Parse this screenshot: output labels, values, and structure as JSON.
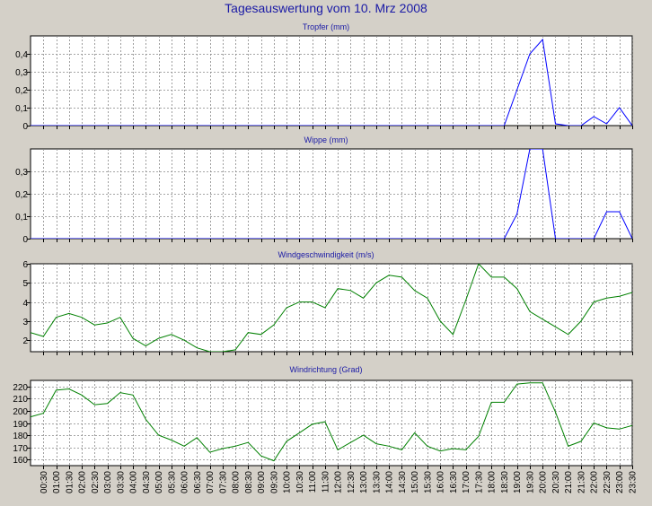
{
  "page_title": "Tagesauswertung vom 10. Mrz 2008",
  "colors": {
    "background": "#d4d0c8",
    "plot_area": "#ffffff",
    "title": "#1a1aa6",
    "grid": "#888888"
  },
  "x_ticks": [
    "00:30",
    "01:00",
    "01:30",
    "02:00",
    "02:30",
    "03:00",
    "03:30",
    "04:00",
    "04:30",
    "05:00",
    "05:30",
    "06:00",
    "06:30",
    "07:00",
    "07:30",
    "08:00",
    "08:30",
    "09:00",
    "09:30",
    "10:00",
    "10:30",
    "11:00",
    "11:30",
    "12:00",
    "12:30",
    "13:00",
    "13:30",
    "14:00",
    "14:30",
    "15:00",
    "15:30",
    "16:00",
    "16:30",
    "17:00",
    "17:30",
    "18:00",
    "18:30",
    "19:00",
    "19:30",
    "20:00",
    "20:30",
    "21:00",
    "21:30",
    "22:00",
    "22:30",
    "23:00",
    "23:30"
  ],
  "chart_data": [
    {
      "type": "line",
      "title": "Tropfer (mm)",
      "ylim": [
        0,
        0.5
      ],
      "yticks": [
        0,
        0.1,
        0.2,
        0.3,
        0.4
      ],
      "ytick_labels": [
        "0",
        "0,1",
        "0,2",
        "0,3",
        "0,4"
      ],
      "grid": true,
      "color": "#0000ff",
      "x_points": [
        0,
        18.5,
        19.0,
        19.5,
        20.0,
        20.5,
        21.0,
        21.5,
        22.0,
        22.5,
        23.0,
        23.5
      ],
      "values": [
        0,
        0,
        0.2,
        0.4,
        0.48,
        0.01,
        0,
        0,
        0.05,
        0.01,
        0.1,
        0
      ]
    },
    {
      "type": "line",
      "title": "Wippe (mm)",
      "ylim": [
        0,
        0.4
      ],
      "yticks": [
        0,
        0.1,
        0.2,
        0.3
      ],
      "ytick_labels": [
        "0",
        "0,1",
        "0,2",
        "0,3"
      ],
      "grid": true,
      "color": "#0000ff",
      "x_points": [
        0,
        18.5,
        19.0,
        19.5,
        20.0,
        20.5,
        21.0,
        21.5,
        22.0,
        22.5,
        23.0,
        23.5
      ],
      "values": [
        0,
        0,
        0.11,
        0.4,
        0.4,
        0,
        0,
        0,
        0,
        0.12,
        0.12,
        0
      ]
    },
    {
      "type": "line",
      "title": "Windgeschwindigkeit (m/s)",
      "ylim": [
        1.4,
        6
      ],
      "yticks": [
        2,
        3,
        4,
        5,
        6
      ],
      "ytick_labels": [
        "2",
        "3",
        "4",
        "5",
        "6"
      ],
      "grid": true,
      "color": "#008000",
      "x_points": [
        0,
        0.5,
        1.0,
        1.5,
        2.0,
        2.5,
        3.0,
        3.5,
        4.0,
        4.5,
        5.0,
        5.5,
        6.0,
        6.5,
        7.0,
        7.5,
        8.0,
        8.5,
        9.0,
        9.5,
        10.0,
        10.5,
        11.0,
        11.5,
        12.0,
        12.5,
        13.0,
        13.5,
        14.0,
        14.5,
        15.0,
        15.5,
        16.0,
        16.5,
        17.0,
        17.5,
        18.0,
        18.5,
        19.0,
        19.5,
        20.0,
        20.5,
        21.0,
        21.5,
        22.0,
        22.5,
        23.0,
        23.5
      ],
      "values": [
        2.4,
        2.2,
        3.2,
        3.4,
        3.2,
        2.8,
        2.9,
        3.2,
        2.1,
        1.7,
        2.1,
        2.3,
        2.0,
        1.6,
        1.4,
        1.4,
        1.5,
        2.4,
        2.3,
        2.8,
        3.7,
        4.0,
        4.0,
        3.7,
        4.7,
        4.6,
        4.2,
        5.0,
        5.4,
        5.3,
        4.6,
        4.2,
        3.0,
        2.3,
        4.1,
        6.0,
        5.3,
        5.3,
        4.7,
        3.5,
        3.1,
        2.7,
        2.3,
        3.0,
        4.0,
        4.2,
        4.3,
        4.5
      ]
    },
    {
      "type": "line",
      "title": "Windrichtung (Grad)",
      "ylim": [
        155,
        225
      ],
      "yticks": [
        160,
        170,
        180,
        190,
        200,
        210,
        220
      ],
      "ytick_labels": [
        "160",
        "170",
        "180",
        "190",
        "200",
        "210",
        "220"
      ],
      "grid": true,
      "color": "#008000",
      "x_points": [
        0,
        0.5,
        1.0,
        1.5,
        2.0,
        2.5,
        3.0,
        3.5,
        4.0,
        4.5,
        5.0,
        5.5,
        6.0,
        6.5,
        7.0,
        7.5,
        8.0,
        8.5,
        9.0,
        9.5,
        10.0,
        10.5,
        11.0,
        11.5,
        12.0,
        12.5,
        13.0,
        13.5,
        14.0,
        14.5,
        15.0,
        15.5,
        16.0,
        16.5,
        17.0,
        17.5,
        18.0,
        18.5,
        19.0,
        19.5,
        20.0,
        20.5,
        21.0,
        21.5,
        22.0,
        22.5,
        23.0,
        23.5
      ],
      "values": [
        195,
        198,
        217,
        218,
        213,
        205,
        206,
        215,
        213,
        193,
        180,
        176,
        171,
        178,
        166,
        169,
        171,
        174,
        163,
        159,
        175,
        182,
        189,
        191,
        168,
        174,
        180,
        173,
        171,
        168,
        182,
        171,
        167,
        169,
        168,
        179,
        207,
        207,
        222,
        223,
        223,
        199,
        171,
        175,
        190,
        186,
        185,
        188
      ]
    }
  ]
}
